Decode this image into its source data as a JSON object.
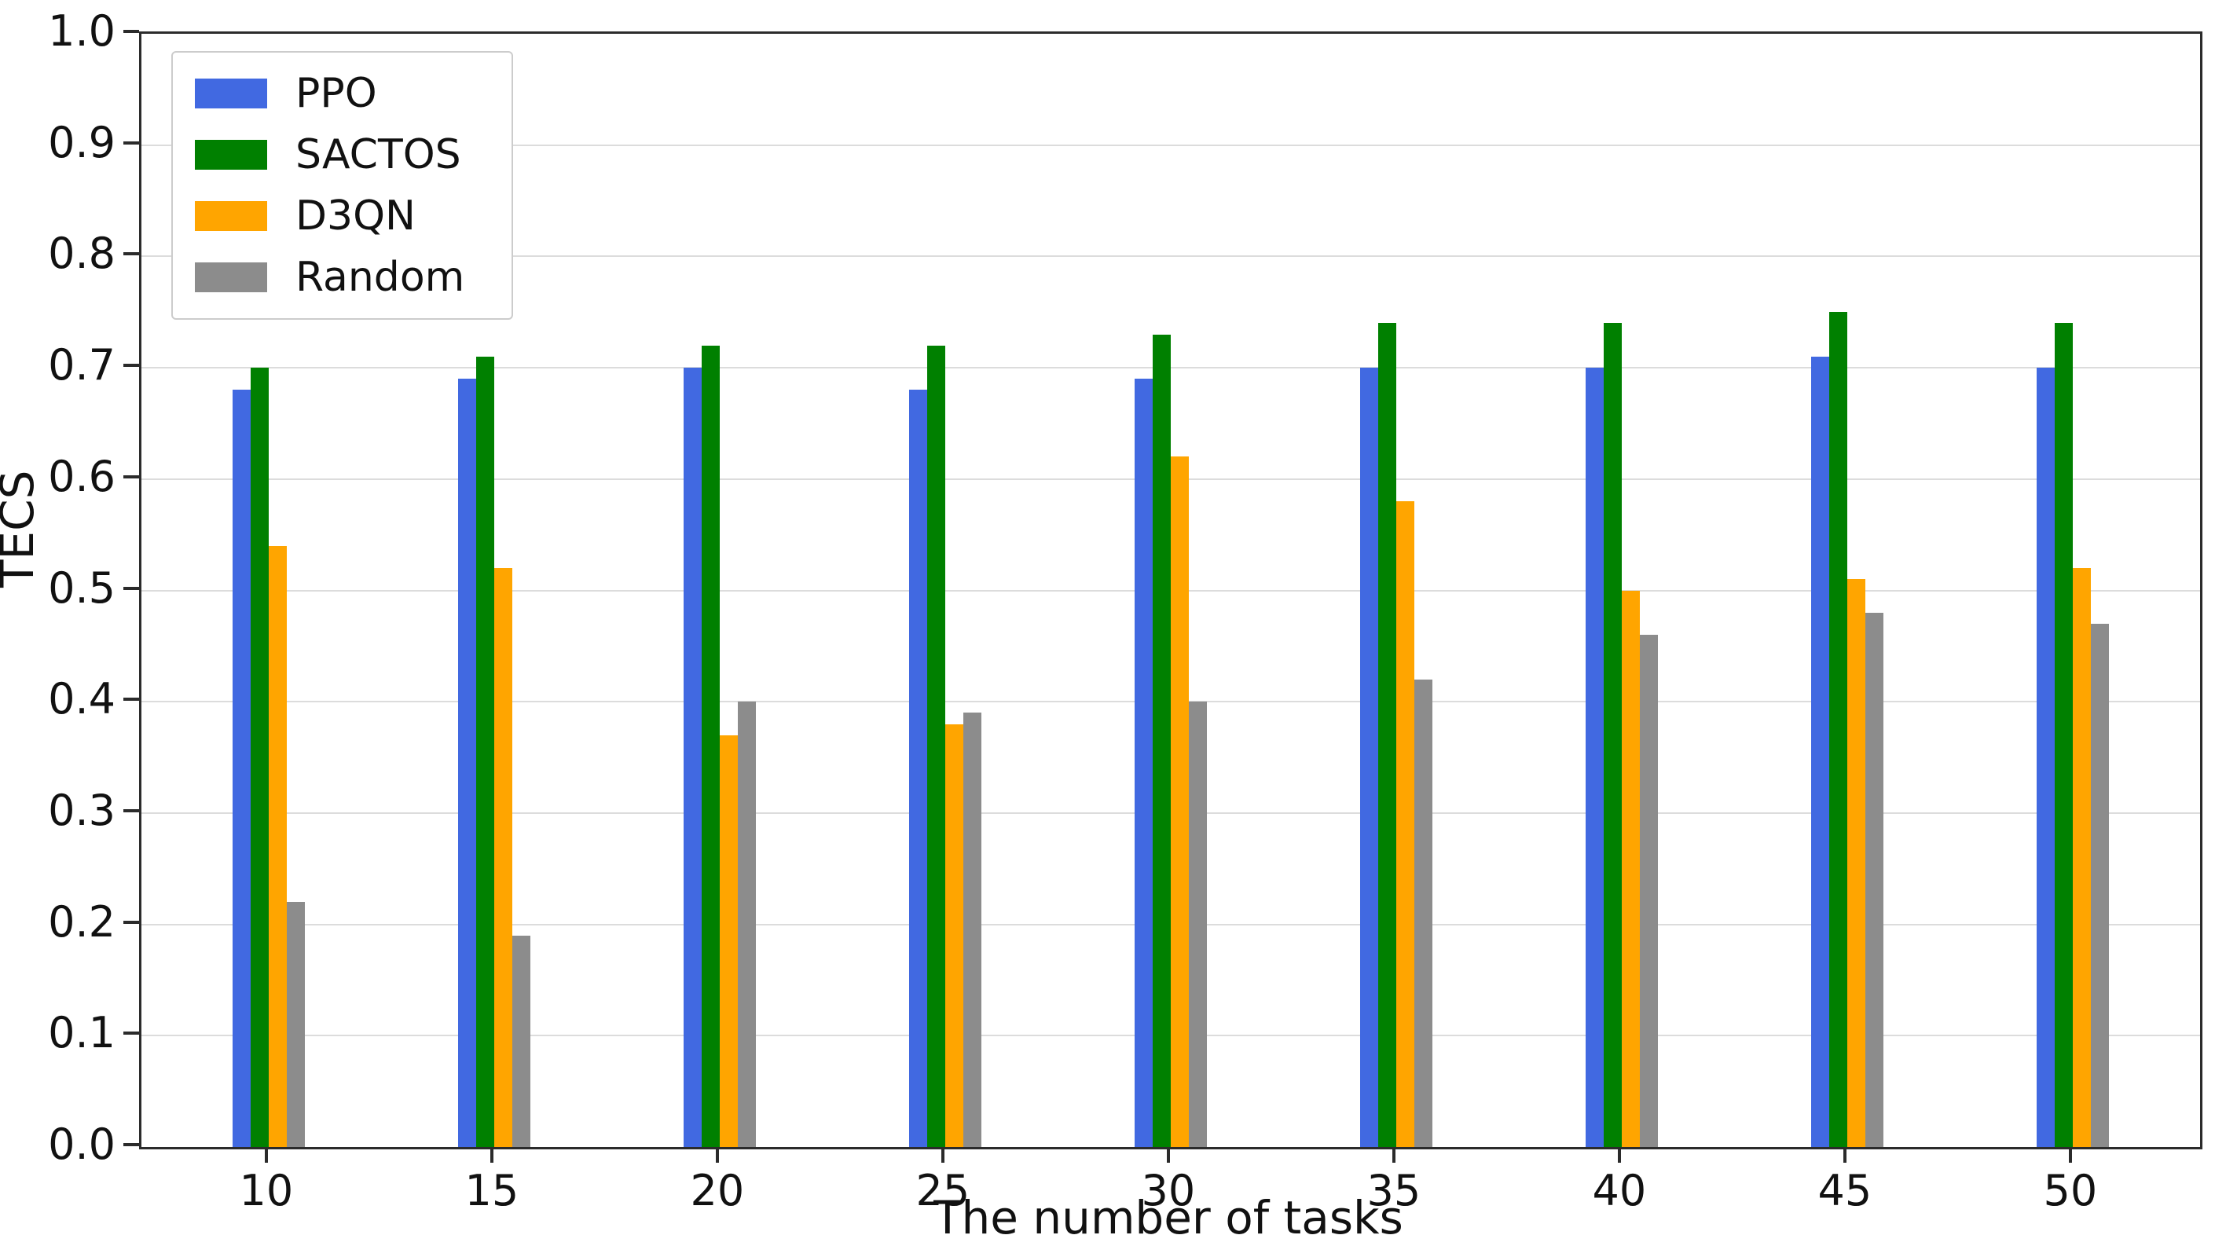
{
  "chart_data": {
    "type": "bar",
    "title": "",
    "xlabel": "The number of tasks",
    "ylabel": "TECS",
    "categories": [
      "10",
      "15",
      "20",
      "25",
      "30",
      "35",
      "40",
      "45",
      "50"
    ],
    "series": [
      {
        "name": "PPO",
        "color": "#4169e1",
        "values": [
          0.68,
          0.69,
          0.7,
          0.68,
          0.69,
          0.7,
          0.7,
          0.71,
          0.7
        ]
      },
      {
        "name": "SACTOS",
        "color": "#008000",
        "values": [
          0.7,
          0.71,
          0.72,
          0.72,
          0.73,
          0.74,
          0.74,
          0.75,
          0.74
        ]
      },
      {
        "name": "D3QN",
        "color": "#ffa500",
        "values": [
          0.54,
          0.52,
          0.37,
          0.38,
          0.62,
          0.58,
          0.5,
          0.51,
          0.52
        ]
      },
      {
        "name": "Random",
        "color": "#8c8c8c",
        "values": [
          0.22,
          0.19,
          0.4,
          0.39,
          0.4,
          0.42,
          0.46,
          0.48,
          0.47
        ]
      }
    ],
    "ylim": [
      0.0,
      1.0
    ],
    "yticks": [
      "0.0",
      "0.1",
      "0.2",
      "0.3",
      "0.4",
      "0.5",
      "0.6",
      "0.7",
      "0.8",
      "0.9",
      "1.0"
    ],
    "grid": true,
    "grid_color": "#dcdcdc",
    "legend_position": "upper-left",
    "spine_color": "#2b2b2b",
    "background_color": "#ffffff"
  }
}
